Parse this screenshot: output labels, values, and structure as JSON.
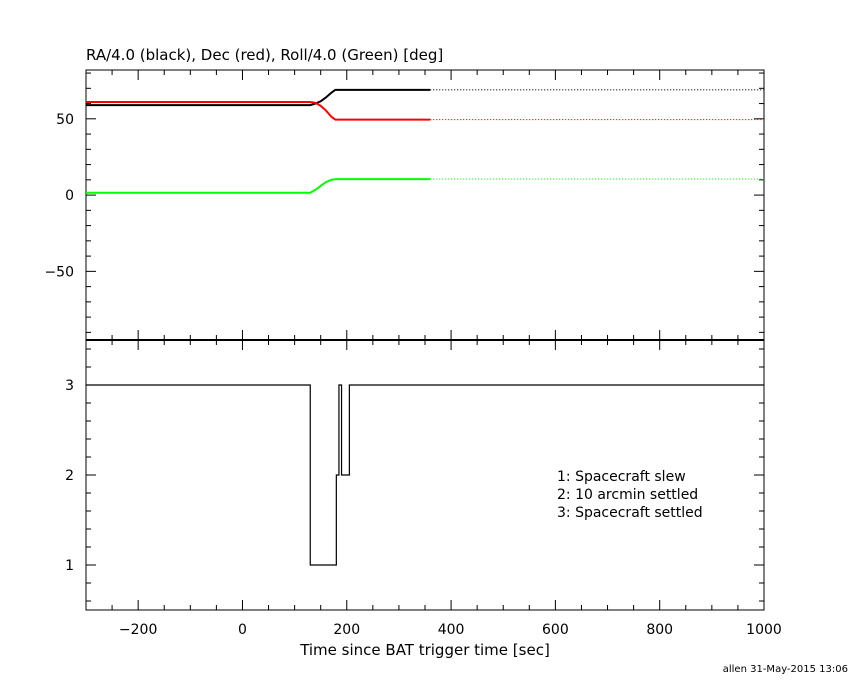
{
  "chart_data": [
    {
      "type": "line",
      "title": "RA/4.0 (black), Dec (red), Roll/4.0 (Green) [deg]",
      "xlim": [
        -300,
        1000
      ],
      "ylim": [
        -95,
        82
      ],
      "yticks": [
        -50,
        0,
        50
      ],
      "grid": false,
      "series": [
        {
          "color": "#000000",
          "solid": {
            "x": [
              -300,
              130,
              140,
              150,
              160,
              170,
              178,
              360
            ],
            "y": [
              59,
              59,
              60,
              61.5,
              64,
              67,
              69,
              69
            ]
          },
          "dotted": {
            "x": [
              360,
              1000
            ],
            "y": [
              69,
              69
            ]
          }
        },
        {
          "color": "#ff0000",
          "solid": {
            "x": [
              -300,
              130,
              140,
              150,
              160,
              170,
              178,
              360
            ],
            "y": [
              61,
              61,
              60.5,
              58.5,
              55.5,
              51.5,
              49.5,
              49.5
            ]
          },
          "dotted": {
            "x": [
              360,
              1000
            ],
            "y": [
              49.5,
              49.5
            ]
          }
        },
        {
          "color": "#00ff00",
          "solid": {
            "x": [
              -300,
              130,
              140,
              150,
              160,
              170,
              180,
              360
            ],
            "y": [
              1.5,
              1.5,
              3.5,
              6,
              8.5,
              10,
              10.5,
              10.5
            ]
          },
          "dotted": {
            "x": [
              360,
              1000
            ],
            "y": [
              10.5,
              10.5
            ]
          }
        }
      ]
    },
    {
      "type": "line",
      "step": true,
      "xlim": [
        -300,
        1000
      ],
      "ylim": [
        0.5,
        3.5
      ],
      "yticks": [
        1,
        2,
        3
      ],
      "grid": false,
      "series": [
        {
          "color": "#000000",
          "x": [
            -300,
            130,
            130,
            180,
            180,
            185,
            185,
            190,
            190,
            205,
            205,
            1000
          ],
          "y": [
            3,
            3,
            1,
            1,
            2,
            2,
            3,
            3,
            2,
            2,
            3,
            3
          ]
        }
      ],
      "annotations": [
        "1: Spacecraft slew",
        "2: 10 arcmin settled",
        "3: Spacecraft settled"
      ]
    }
  ],
  "xaxis": {
    "xlabel": "Time since BAT trigger time [sec]",
    "xticks": [
      -200,
      0,
      200,
      400,
      600,
      800,
      1000
    ]
  },
  "footer": "allen 31-May-2015 13:06"
}
